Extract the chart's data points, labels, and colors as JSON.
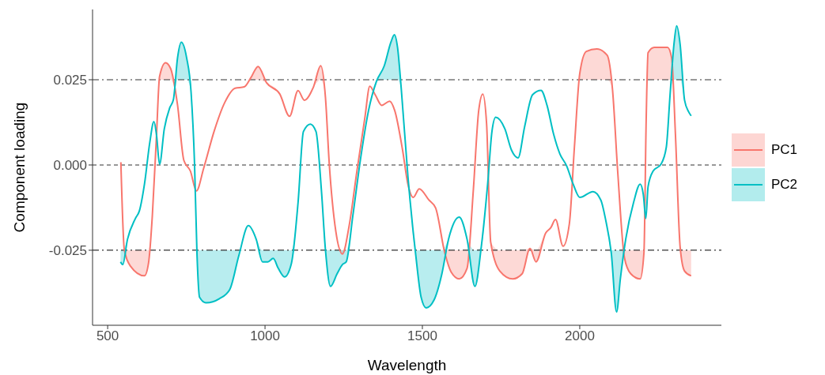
{
  "chart_data": {
    "type": "line",
    "xlabel": "Wavelength",
    "ylabel": "Component loading",
    "xlim": [
      452,
      2450
    ],
    "xticks": [
      500,
      1000,
      1500,
      2000
    ],
    "ylim": [
      -0.047,
      0.0456
    ],
    "yticks": [
      {
        "value": -0.025,
        "label": "-0.025"
      },
      {
        "value": 0,
        "label": "0.000"
      },
      {
        "value": 0.025,
        "label": "0.025"
      }
    ],
    "grid": false,
    "legend": "right",
    "line_style": "solid",
    "marker": "none",
    "ref_lines": [
      {
        "axis": "y",
        "value": 0.025,
        "line_style": "dashdot",
        "color": "#333333"
      },
      {
        "axis": "y",
        "value": 0,
        "line_style": "dashed",
        "color": "#333333"
      },
      {
        "axis": "y",
        "value": -0.025,
        "line_style": "dashdot",
        "color": "#333333"
      }
    ],
    "series": [
      {
        "name": "PC1",
        "color": "#f8766d",
        "x": [
          542,
          553,
          572,
          617,
          630,
          642,
          655,
          665,
          684,
          700,
          722,
          742,
          763,
          782,
          805,
          838,
          872,
          905,
          934,
          955,
          978,
          1005,
          1047,
          1078,
          1105,
          1125,
          1154,
          1177,
          1192,
          1204,
          1225,
          1246,
          1267,
          1292,
          1317,
          1333,
          1350,
          1371,
          1396,
          1412,
          1437,
          1454,
          1471,
          1490,
          1521,
          1542,
          1571,
          1592,
          1617,
          1642,
          1662,
          1679,
          1692,
          1704,
          1717,
          1746,
          1787,
          1817,
          1842,
          1861,
          1892,
          1908,
          1923,
          1947,
          1967,
          1983,
          2000,
          2021,
          2054,
          2087,
          2104,
          2121,
          2142,
          2162,
          2192,
          2204,
          2211,
          2217,
          2237,
          2279,
          2292,
          2304,
          2319,
          2333,
          2354
        ],
        "values": [
          0.0008,
          -0.0249,
          -0.0296,
          -0.0325,
          -0.0287,
          -0.0148,
          0.0083,
          0.026,
          0.03,
          0.0283,
          0.0176,
          0.0014,
          -0.0018,
          -0.0076,
          -0.001,
          0.0098,
          0.0183,
          0.0225,
          0.0229,
          0.0256,
          0.0289,
          0.0241,
          0.0208,
          0.0143,
          0.0218,
          0.019,
          0.0229,
          0.0291,
          0.0198,
          0.0005,
          -0.0195,
          -0.0261,
          -0.018,
          -0.0018,
          0.0137,
          0.0231,
          0.0206,
          0.0175,
          0.0187,
          0.016,
          0.0044,
          -0.0056,
          -0.0095,
          -0.007,
          -0.0103,
          -0.0126,
          -0.0257,
          -0.0315,
          -0.0334,
          -0.0303,
          -0.0072,
          0.016,
          0.0208,
          0.0121,
          -0.0226,
          -0.0311,
          -0.0334,
          -0.0319,
          -0.0245,
          -0.0284,
          -0.0199,
          -0.0184,
          -0.016,
          -0.0238,
          -0.0172,
          0.0052,
          0.0268,
          0.0333,
          0.034,
          0.0322,
          0.0222,
          -0.0025,
          -0.0272,
          -0.0319,
          -0.0334,
          -0.0257,
          0.0129,
          0.0329,
          0.0345,
          0.0345,
          0.0314,
          0.009,
          -0.0241,
          -0.0311,
          -0.0325
        ],
        "lower": [
          0.0008,
          -0.0249,
          -0.0296,
          -0.0325,
          -0.0287,
          -0.0148,
          0.0083,
          0.025,
          0.025,
          0.025,
          0.0176,
          0.0014,
          -0.0018,
          -0.0076,
          -0.001,
          0.0098,
          0.0183,
          0.0225,
          0.0229,
          0.025,
          0.025,
          0.0241,
          0.0208,
          0.0143,
          0.0218,
          0.019,
          0.0229,
          0.025,
          0.0198,
          0.0005,
          -0.0195,
          -0.0261,
          -0.018,
          -0.0018,
          0.0137,
          0.0231,
          0.0206,
          0.0175,
          0.0187,
          0.016,
          0.0044,
          -0.0056,
          -0.0095,
          -0.007,
          -0.0103,
          -0.0126,
          -0.0257,
          -0.0315,
          -0.0334,
          -0.0303,
          -0.0072,
          0.016,
          0.0208,
          0.0121,
          -0.0226,
          -0.0311,
          -0.0334,
          -0.0319,
          -0.0245,
          -0.0284,
          -0.0199,
          -0.0184,
          -0.016,
          -0.0238,
          -0.0172,
          0.0052,
          0.025,
          0.025,
          0.025,
          0.025,
          0.0222,
          -0.0025,
          -0.0272,
          -0.0319,
          -0.0334,
          -0.0257,
          0.0129,
          0.025,
          0.025,
          0.025,
          0.025,
          0.009,
          -0.0241,
          -0.0311,
          -0.0325
        ],
        "upper": [
          0.0008,
          -0.0249,
          -0.025,
          -0.025,
          -0.025,
          -0.0148,
          0.0083,
          0.026,
          0.03,
          0.0283,
          0.0176,
          0.0014,
          -0.0018,
          -0.0076,
          -0.001,
          0.0098,
          0.0183,
          0.0225,
          0.0229,
          0.0256,
          0.0289,
          0.0241,
          0.0208,
          0.0143,
          0.0218,
          0.019,
          0.0229,
          0.0291,
          0.0198,
          0.0005,
          -0.0195,
          -0.025,
          -0.018,
          -0.0018,
          0.0137,
          0.0231,
          0.0206,
          0.0175,
          0.0187,
          0.016,
          0.0044,
          -0.0056,
          -0.0095,
          -0.007,
          -0.0103,
          -0.0126,
          -0.025,
          -0.025,
          -0.025,
          -0.025,
          -0.0072,
          0.016,
          0.0208,
          0.0121,
          -0.0226,
          -0.025,
          -0.025,
          -0.025,
          -0.0245,
          -0.025,
          -0.0199,
          -0.0184,
          -0.016,
          -0.0238,
          -0.0172,
          0.0052,
          0.0268,
          0.0333,
          0.034,
          0.0322,
          0.0222,
          -0.0025,
          -0.025,
          -0.025,
          -0.025,
          -0.025,
          0.0129,
          0.0329,
          0.0345,
          0.0345,
          0.0314,
          0.009,
          -0.0241,
          -0.025,
          -0.025
        ]
      },
      {
        "name": "PC2",
        "color": "#00bfc4",
        "x": [
          541,
          548,
          563,
          588,
          601,
          617,
          634,
          647,
          655,
          665,
          680,
          697,
          709,
          722,
          734,
          751,
          765,
          776,
          784,
          792,
          813,
          855,
          888,
          917,
          947,
          972,
          992,
          1009,
          1026,
          1042,
          1062,
          1084,
          1105,
          1122,
          1144,
          1162,
          1179,
          1192,
          1208,
          1229,
          1246,
          1258,
          1279,
          1304,
          1329,
          1354,
          1379,
          1400,
          1411,
          1421,
          1433,
          1454,
          1479,
          1496,
          1512,
          1537,
          1562,
          1583,
          1617,
          1642,
          1667,
          1687,
          1708,
          1721,
          1733,
          1762,
          1783,
          1804,
          1825,
          1850,
          1877,
          1896,
          1917,
          1937,
          1958,
          1979,
          2000,
          2042,
          2067,
          2083,
          2100,
          2117,
          2129,
          2146,
          2171,
          2192,
          2202,
          2210,
          2217,
          2233,
          2258,
          2275,
          2287,
          2300,
          2308,
          2319,
          2333,
          2346,
          2354
        ],
        "values": [
          -0.0284,
          -0.0292,
          -0.0218,
          -0.0157,
          -0.0134,
          -0.0056,
          0.0067,
          0.0127,
          0.009,
          0.0002,
          0.0106,
          0.0167,
          0.0192,
          0.0314,
          0.036,
          0.0314,
          0.0214,
          0.0005,
          -0.0265,
          -0.0388,
          -0.0404,
          -0.0392,
          -0.0365,
          -0.0265,
          -0.0178,
          -0.0218,
          -0.0284,
          -0.0284,
          -0.0274,
          -0.0303,
          -0.0328,
          -0.0288,
          -0.011,
          0.0098,
          0.012,
          0.0098,
          -0.0072,
          -0.0249,
          -0.0356,
          -0.0319,
          -0.0292,
          -0.0284,
          -0.0149,
          0.0021,
          0.016,
          0.0245,
          0.0291,
          0.036,
          0.0382,
          0.0345,
          0.0222,
          -0.0033,
          -0.0265,
          -0.0388,
          -0.0419,
          -0.0396,
          -0.0319,
          -0.0218,
          -0.0153,
          -0.0218,
          -0.0356,
          -0.0241,
          -0.0049,
          0.0098,
          0.014,
          0.0106,
          0.0044,
          0.0021,
          0.0113,
          0.0206,
          0.0219,
          0.0175,
          0.009,
          0.0032,
          -0.0002,
          -0.0056,
          -0.0095,
          -0.0078,
          -0.0103,
          -0.0164,
          -0.0257,
          -0.0431,
          -0.0334,
          -0.0218,
          -0.011,
          -0.0056,
          -0.0087,
          -0.0157,
          -0.0064,
          -0.0018,
          0.0002,
          0.0052,
          0.0206,
          0.036,
          0.0408,
          0.0353,
          0.019,
          0.0156,
          0.0144
        ],
        "lower": [
          -0.0284,
          -0.0292,
          -0.0218,
          -0.0157,
          -0.0134,
          -0.0056,
          0.0067,
          0.0127,
          0.009,
          0.0002,
          0.0106,
          0.0167,
          0.0192,
          0.025,
          0.025,
          0.025,
          0.0214,
          0.0005,
          -0.0265,
          -0.0388,
          -0.0404,
          -0.0392,
          -0.0365,
          -0.0265,
          -0.0178,
          -0.0218,
          -0.0284,
          -0.0284,
          -0.0274,
          -0.0303,
          -0.0328,
          -0.0288,
          -0.011,
          0.0098,
          0.012,
          0.0098,
          -0.0072,
          -0.0249,
          -0.0356,
          -0.0319,
          -0.0292,
          -0.0284,
          -0.0149,
          0.0021,
          0.016,
          0.0245,
          0.025,
          0.025,
          0.025,
          0.025,
          0.0222,
          -0.0033,
          -0.0265,
          -0.0388,
          -0.0419,
          -0.0396,
          -0.0319,
          -0.0218,
          -0.0153,
          -0.0218,
          -0.0356,
          -0.0241,
          -0.0049,
          0.0098,
          0.014,
          0.0106,
          0.0044,
          0.0021,
          0.0113,
          0.0206,
          0.0219,
          0.0175,
          0.009,
          0.0032,
          -0.0002,
          -0.0056,
          -0.0095,
          -0.0078,
          -0.0103,
          -0.0164,
          -0.0257,
          -0.0431,
          -0.0334,
          -0.0218,
          -0.011,
          -0.0056,
          -0.0087,
          -0.0157,
          -0.0064,
          -0.0018,
          0.0002,
          0.0052,
          0.0206,
          0.025,
          0.025,
          0.025,
          0.019,
          0.0156,
          0.0144
        ],
        "upper": [
          -0.025,
          -0.025,
          -0.0218,
          -0.0157,
          -0.0134,
          -0.0056,
          0.0067,
          0.0127,
          0.009,
          0.0002,
          0.0106,
          0.0167,
          0.0192,
          0.0314,
          0.036,
          0.0314,
          0.0214,
          0.0005,
          -0.025,
          -0.025,
          -0.025,
          -0.025,
          -0.025,
          -0.025,
          -0.0178,
          -0.0218,
          -0.025,
          -0.025,
          -0.025,
          -0.025,
          -0.025,
          -0.025,
          -0.011,
          0.0098,
          0.012,
          0.0098,
          -0.0072,
          -0.0249,
          -0.025,
          -0.025,
          -0.025,
          -0.025,
          -0.0149,
          0.0021,
          0.016,
          0.0245,
          0.0291,
          0.036,
          0.0382,
          0.0345,
          0.0222,
          -0.0033,
          -0.025,
          -0.025,
          -0.025,
          -0.025,
          -0.025,
          -0.0218,
          -0.0153,
          -0.0218,
          -0.025,
          -0.0241,
          -0.0049,
          0.0098,
          0.014,
          0.0106,
          0.0044,
          0.0021,
          0.0113,
          0.0206,
          0.0219,
          0.0175,
          0.009,
          0.0032,
          -0.0002,
          -0.0056,
          -0.0095,
          -0.0078,
          -0.0103,
          -0.0164,
          -0.025,
          -0.025,
          -0.025,
          -0.0218,
          -0.011,
          -0.0056,
          -0.0087,
          -0.0157,
          -0.0064,
          -0.0018,
          0.0002,
          0.0052,
          0.0206,
          0.036,
          0.0408,
          0.0353,
          0.019,
          0.0156,
          0.0144
        ]
      }
    ]
  }
}
